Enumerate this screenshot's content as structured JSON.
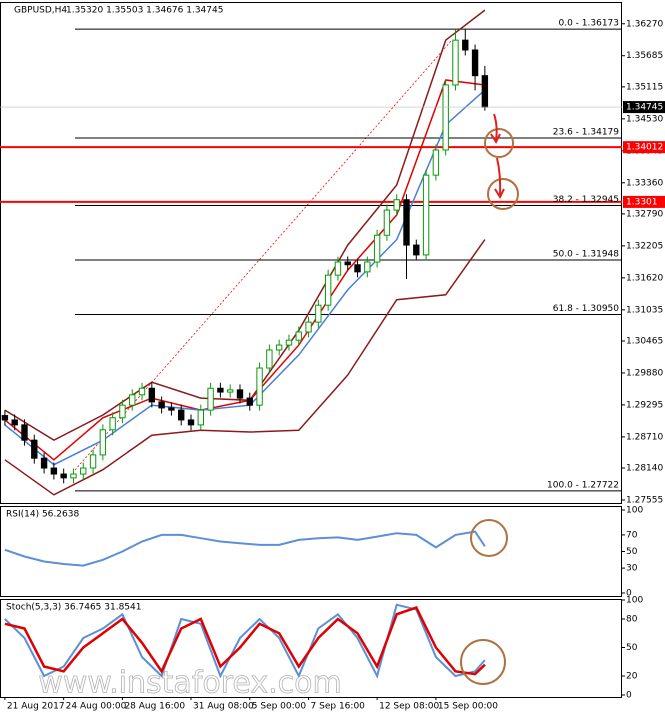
{
  "chart_data": [
    {
      "type": "candlestick",
      "title": "GBPUSD,H4",
      "subtitle": "1.35320 1.35503 1.34676 1.34745",
      "watermark": "www.instaforex.com",
      "xlim": [
        -0.5,
        63
      ],
      "ylim": [
        1.275,
        1.3665
      ],
      "x": [
        0,
        1,
        2,
        3,
        4,
        5,
        6,
        7,
        8,
        9,
        10,
        11,
        12,
        13,
        14,
        15,
        16,
        17,
        18,
        19,
        20,
        21,
        22,
        23,
        24,
        25,
        26,
        27,
        28,
        29,
        30,
        31,
        32,
        33,
        34,
        35,
        36,
        37,
        38,
        39,
        40,
        41,
        42,
        43,
        44,
        45,
        46,
        47,
        48,
        49
      ],
      "open": [
        1.291,
        1.2902,
        1.2893,
        1.2865,
        1.2832,
        1.2814,
        1.2803,
        1.2796,
        1.2803,
        1.2814,
        1.2838,
        1.2884,
        1.2906,
        1.2929,
        1.2948,
        1.296,
        1.2935,
        1.2924,
        1.292,
        1.2902,
        1.2893,
        1.292,
        1.296,
        1.2953,
        1.2957,
        1.2942,
        1.2929,
        1.2997,
        1.303,
        1.3039,
        1.3048,
        1.3063,
        1.3081,
        1.3112,
        1.3167,
        1.3191,
        1.3186,
        1.3173,
        1.3191,
        1.324,
        1.3286,
        1.3305,
        1.3222,
        1.3204,
        1.335,
        1.3396,
        1.3515,
        1.3597,
        1.3579,
        1.3532
      ],
      "high": [
        1.292,
        1.2912,
        1.2903,
        1.2875,
        1.2842,
        1.2824,
        1.2813,
        1.2813,
        1.2824,
        1.2848,
        1.2894,
        1.2916,
        1.2939,
        1.2958,
        1.297,
        1.297,
        1.2945,
        1.2934,
        1.293,
        1.2912,
        1.293,
        1.297,
        1.297,
        1.2967,
        1.2967,
        1.2952,
        1.3007,
        1.304,
        1.3049,
        1.3058,
        1.3073,
        1.3091,
        1.3122,
        1.3177,
        1.3201,
        1.3201,
        1.3196,
        1.3201,
        1.325,
        1.3296,
        1.3315,
        1.3315,
        1.3232,
        1.336,
        1.3406,
        1.3525,
        1.3617,
        1.3617,
        1.3589,
        1.355
      ],
      "low": [
        1.2892,
        1.2883,
        1.2855,
        1.2822,
        1.2804,
        1.2793,
        1.2786,
        1.2786,
        1.2793,
        1.2804,
        1.2828,
        1.2874,
        1.2896,
        1.2919,
        1.2938,
        1.2925,
        1.2914,
        1.291,
        1.2892,
        1.2883,
        1.2883,
        1.291,
        1.2943,
        1.2943,
        1.2932,
        1.2919,
        1.2919,
        1.2987,
        1.302,
        1.3029,
        1.3038,
        1.3053,
        1.3071,
        1.3102,
        1.3157,
        1.3176,
        1.3163,
        1.3163,
        1.3181,
        1.323,
        1.3276,
        1.316,
        1.3194,
        1.3194,
        1.334,
        1.3386,
        1.3505,
        1.3569,
        1.3505,
        1.3468
      ],
      "close": [
        1.2902,
        1.2893,
        1.2865,
        1.2832,
        1.2814,
        1.2803,
        1.2796,
        1.2803,
        1.2814,
        1.2838,
        1.2884,
        1.2906,
        1.2929,
        1.2948,
        1.296,
        1.2935,
        1.2924,
        1.292,
        1.2902,
        1.2893,
        1.292,
        1.296,
        1.2953,
        1.2957,
        1.2942,
        1.2929,
        1.2997,
        1.303,
        1.3039,
        1.3048,
        1.3063,
        1.3081,
        1.3112,
        1.3167,
        1.3191,
        1.3186,
        1.3173,
        1.3191,
        1.324,
        1.3286,
        1.3305,
        1.3222,
        1.3204,
        1.335,
        1.3396,
        1.3515,
        1.3597,
        1.3579,
        1.3532,
        1.34745
      ],
      "up_color": "#0a9a0a",
      "down_color": "#000000",
      "indicators": [
        {
          "color": "#8b1a1a",
          "x": [
            0,
            5,
            10,
            15,
            20,
            25,
            30,
            35,
            40,
            45,
            49
          ],
          "values": [
            1.292,
            1.2865,
            1.2911,
            1.2971,
            1.2942,
            1.2938,
            1.3066,
            1.3222,
            1.3332,
            1.3597,
            1.3652
          ]
        },
        {
          "color": "#8b1a1a",
          "x": [
            0,
            5,
            10,
            15,
            20,
            25,
            30,
            35,
            40,
            45,
            49
          ],
          "values": [
            1.2829,
            1.2765,
            1.2811,
            1.2874,
            1.2883,
            1.288,
            1.2883,
            1.2984,
            1.3122,
            1.3131,
            1.3232
          ]
        },
        {
          "color": "#e00000",
          "x": [
            0,
            5,
            10,
            15,
            20,
            25,
            30,
            35,
            40,
            45,
            49
          ],
          "values": [
            1.2902,
            1.2829,
            1.2906,
            1.2942,
            1.292,
            1.2938,
            1.3039,
            1.3176,
            1.3277,
            1.3524,
            1.3515
          ]
        },
        {
          "color": "#4a7fd6",
          "x": [
            0,
            5,
            10,
            15,
            20,
            25,
            30,
            35,
            40,
            45,
            49
          ],
          "values": [
            1.2893,
            1.282,
            1.2865,
            1.2929,
            1.292,
            1.2929,
            1.3021,
            1.314,
            1.3232,
            1.3442,
            1.3506
          ]
        }
      ],
      "yticks": [
        {
          "value": 1.3627,
          "label": "1.36270"
        },
        {
          "value": 1.35685,
          "label": "1.35685"
        },
        {
          "value": 1.35115,
          "label": "1.35115"
        },
        {
          "value": 1.3453,
          "label": "1.34530"
        },
        {
          "value": 1.33945,
          "label": "1.33945"
        },
        {
          "value": 1.3336,
          "label": "1.33360"
        },
        {
          "value": 1.3279,
          "label": "1.32790"
        },
        {
          "value": 1.32205,
          "label": "1.32205"
        },
        {
          "value": 1.3162,
          "label": "1.31620"
        },
        {
          "value": 1.31035,
          "label": "1.31035"
        },
        {
          "value": 1.30465,
          "label": "1.30465"
        },
        {
          "value": 1.2988,
          "label": "1.29880"
        },
        {
          "value": 1.29295,
          "label": "1.29295"
        },
        {
          "value": 1.2871,
          "label": "1.28710"
        },
        {
          "value": 1.2814,
          "label": "1.28140"
        },
        {
          "value": 1.27555,
          "label": "1.27555"
        }
      ],
      "levels": [
        {
          "value": 1.36173,
          "label": "0.0 - 1.36173"
        },
        {
          "value": 1.34179,
          "label": "23.6 - 1.34179"
        },
        {
          "value": 1.32945,
          "label": "38.2 - 1.32945"
        },
        {
          "value": 1.31948,
          "label": "50.0 - 1.31948"
        },
        {
          "value": 1.3095,
          "label": "61.8 - 1.30950"
        },
        {
          "value": 1.27722,
          "label": "100.0 - 1.27722"
        }
      ],
      "marked_levels": [
        {
          "value": 1.34012,
          "color": "#ff0000"
        },
        {
          "value": 1.3301,
          "color": "#ff0000"
        }
      ],
      "current_price": 1.34745
    },
    {
      "type": "line",
      "title": "RSI(14) 56.2638",
      "xlim": [
        -0.5,
        63
      ],
      "ylim": [
        0,
        100
      ],
      "yticks": [
        100,
        70,
        50,
        30,
        0
      ],
      "x": [
        0,
        2,
        4,
        6,
        8,
        10,
        12,
        14,
        16,
        18,
        20,
        22,
        24,
        26,
        28,
        30,
        32,
        34,
        36,
        38,
        40,
        42,
        44,
        46,
        48,
        49
      ],
      "series": [
        {
          "color": "#5b8fd6",
          "values": [
            52,
            44,
            38,
            35,
            33,
            40,
            50,
            62,
            70,
            70,
            66,
            62,
            60,
            58,
            58,
            64,
            66,
            67,
            64,
            68,
            72,
            70,
            55,
            70,
            74,
            56.2638
          ]
        }
      ]
    },
    {
      "type": "line",
      "title": "Stoch(5,3,3) 36.7465 31.8541",
      "xlim": [
        -0.5,
        63
      ],
      "ylim": [
        0,
        100
      ],
      "yticks": [
        100,
        80,
        50,
        20,
        0
      ],
      "x": [
        0,
        2,
        4,
        6,
        8,
        10,
        12,
        14,
        16,
        18,
        20,
        22,
        24,
        26,
        28,
        30,
        32,
        34,
        36,
        38,
        40,
        42,
        44,
        46,
        48,
        49
      ],
      "series": [
        {
          "color": "#5b8fd6",
          "values": [
            80,
            60,
            20,
            30,
            60,
            70,
            85,
            40,
            20,
            80,
            75,
            20,
            60,
            80,
            60,
            20,
            70,
            85,
            60,
            20,
            95,
            90,
            40,
            20,
            25,
            36.7465
          ]
        },
        {
          "color": "#e00000",
          "values": [
            75,
            70,
            30,
            25,
            50,
            65,
            80,
            55,
            25,
            70,
            80,
            30,
            50,
            75,
            65,
            30,
            60,
            80,
            65,
            30,
            85,
            92,
            50,
            25,
            22,
            31.8541
          ]
        }
      ],
      "xticks": [
        {
          "value": 0,
          "label": "21 Aug 2017"
        },
        {
          "value": 6,
          "label": "24 Aug 00:00"
        },
        {
          "value": 12,
          "label": "28 Aug 16:00"
        },
        {
          "value": 19,
          "label": "31 Aug 08:00"
        },
        {
          "value": 25,
          "label": "5 Sep 00:00"
        },
        {
          "value": 31,
          "label": "7 Sep 16:00"
        },
        {
          "value": 38,
          "label": "12 Sep 08:00"
        },
        {
          "value": 44,
          "label": "15 Sep 00:00"
        }
      ]
    }
  ]
}
